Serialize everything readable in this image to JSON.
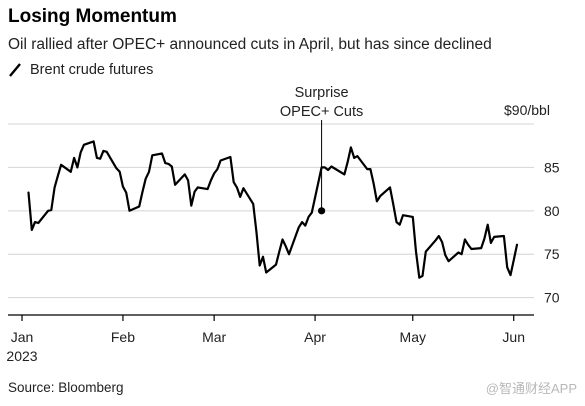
{
  "header": {
    "title": "Losing Momentum",
    "subtitle": "Oil rallied after OPEC+ announced cuts in April, but has since declined"
  },
  "footer": {
    "source": "Source: Bloomberg",
    "watermark": "@智通财经APP"
  },
  "colors": {
    "line": "#000000",
    "grid": "#d4d4d4",
    "axis": "#000000"
  },
  "chart_data": {
    "type": "line",
    "title": "Losing Momentum",
    "subtitle": "Oil rallied after OPEC+ announced cuts in April, but has since declined",
    "xlabel": "",
    "ylabel": "",
    "y_unit_label": "$90/bbl",
    "ylim": [
      68,
      90
    ],
    "xlim": [
      "2023-01-01",
      "2023-06-06"
    ],
    "y_ticks": [
      70,
      75,
      80,
      85
    ],
    "y_tick_labels": [
      "70",
      "75",
      "80",
      "85"
    ],
    "x_ticks": [
      "2023-01-01",
      "2023-02-01",
      "2023-03-01",
      "2023-04-01",
      "2023-05-01",
      "2023-06-01"
    ],
    "x_tick_labels": [
      "Jan",
      "Feb",
      "Mar",
      "Apr",
      "May",
      "Jun"
    ],
    "x_year_label": "2023",
    "grid": true,
    "series": [
      {
        "name": "Brent crude futures",
        "x": [
          "2023-01-03",
          "2023-01-04",
          "2023-01-05",
          "2023-01-06",
          "2023-01-09",
          "2023-01-10",
          "2023-01-11",
          "2023-01-12",
          "2023-01-13",
          "2023-01-16",
          "2023-01-17",
          "2023-01-18",
          "2023-01-19",
          "2023-01-20",
          "2023-01-23",
          "2023-01-24",
          "2023-01-25",
          "2023-01-26",
          "2023-01-27",
          "2023-01-30",
          "2023-01-31",
          "2023-02-01",
          "2023-02-02",
          "2023-02-03",
          "2023-02-06",
          "2023-02-07",
          "2023-02-08",
          "2023-02-09",
          "2023-02-10",
          "2023-02-13",
          "2023-02-14",
          "2023-02-15",
          "2023-02-16",
          "2023-02-17",
          "2023-02-20",
          "2023-02-21",
          "2023-02-22",
          "2023-02-23",
          "2023-02-24",
          "2023-02-27",
          "2023-02-28",
          "2023-03-01",
          "2023-03-02",
          "2023-03-03",
          "2023-03-06",
          "2023-03-07",
          "2023-03-08",
          "2023-03-09",
          "2023-03-10",
          "2023-03-13",
          "2023-03-14",
          "2023-03-15",
          "2023-03-16",
          "2023-03-17",
          "2023-03-20",
          "2023-03-21",
          "2023-03-22",
          "2023-03-23",
          "2023-03-24",
          "2023-03-27",
          "2023-03-28",
          "2023-03-29",
          "2023-03-30",
          "2023-03-31",
          "2023-04-03",
          "2023-04-04",
          "2023-04-05",
          "2023-04-06",
          "2023-04-10",
          "2023-04-11",
          "2023-04-12",
          "2023-04-13",
          "2023-04-14",
          "2023-04-17",
          "2023-04-18",
          "2023-04-19",
          "2023-04-20",
          "2023-04-21",
          "2023-04-24",
          "2023-04-25",
          "2023-04-26",
          "2023-04-27",
          "2023-04-28",
          "2023-05-01",
          "2023-05-02",
          "2023-05-03",
          "2023-05-04",
          "2023-05-05",
          "2023-05-08",
          "2023-05-09",
          "2023-05-10",
          "2023-05-11",
          "2023-05-12",
          "2023-05-15",
          "2023-05-16",
          "2023-05-17",
          "2023-05-18",
          "2023-05-19",
          "2023-05-22",
          "2023-05-23",
          "2023-05-24",
          "2023-05-25",
          "2023-05-26",
          "2023-05-29",
          "2023-05-30",
          "2023-05-31",
          "2023-06-01",
          "2023-06-02"
        ],
        "values": [
          82.1,
          77.8,
          78.7,
          78.6,
          80.0,
          80.1,
          82.7,
          84.0,
          85.3,
          84.5,
          86.1,
          85.0,
          86.7,
          87.6,
          88.0,
          86.1,
          86.0,
          86.9,
          86.8,
          84.9,
          84.5,
          82.8,
          82.1,
          80.0,
          80.5,
          82.2,
          83.7,
          84.5,
          86.4,
          86.6,
          85.5,
          85.4,
          85.1,
          83.0,
          84.2,
          83.5,
          80.6,
          82.2,
          82.7,
          82.5,
          83.5,
          84.3,
          84.8,
          85.8,
          86.2,
          83.3,
          82.7,
          81.6,
          82.6,
          80.8,
          77.5,
          73.7,
          74.7,
          72.9,
          73.8,
          75.3,
          76.7,
          75.9,
          75.0,
          78.1,
          78.7,
          78.3,
          79.3,
          79.8,
          85.0,
          85.0,
          84.7,
          85.1,
          84.2,
          85.6,
          87.3,
          86.1,
          86.3,
          84.8,
          84.8,
          83.1,
          81.1,
          81.7,
          82.7,
          80.8,
          78.7,
          78.4,
          79.5,
          79.3,
          75.3,
          72.3,
          72.5,
          75.3,
          76.6,
          77.1,
          76.4,
          74.9,
          74.2,
          75.2,
          75.0,
          76.7,
          76.1,
          75.6,
          75.7,
          76.8,
          78.4,
          76.3,
          77.0,
          77.1,
          73.5,
          72.6,
          74.3,
          76.1
        ]
      }
    ],
    "annotations": [
      {
        "x": "2023-04-03",
        "y": 80.0,
        "label_lines": [
          "Surprise",
          "OPEC+ Cuts"
        ]
      }
    ]
  }
}
